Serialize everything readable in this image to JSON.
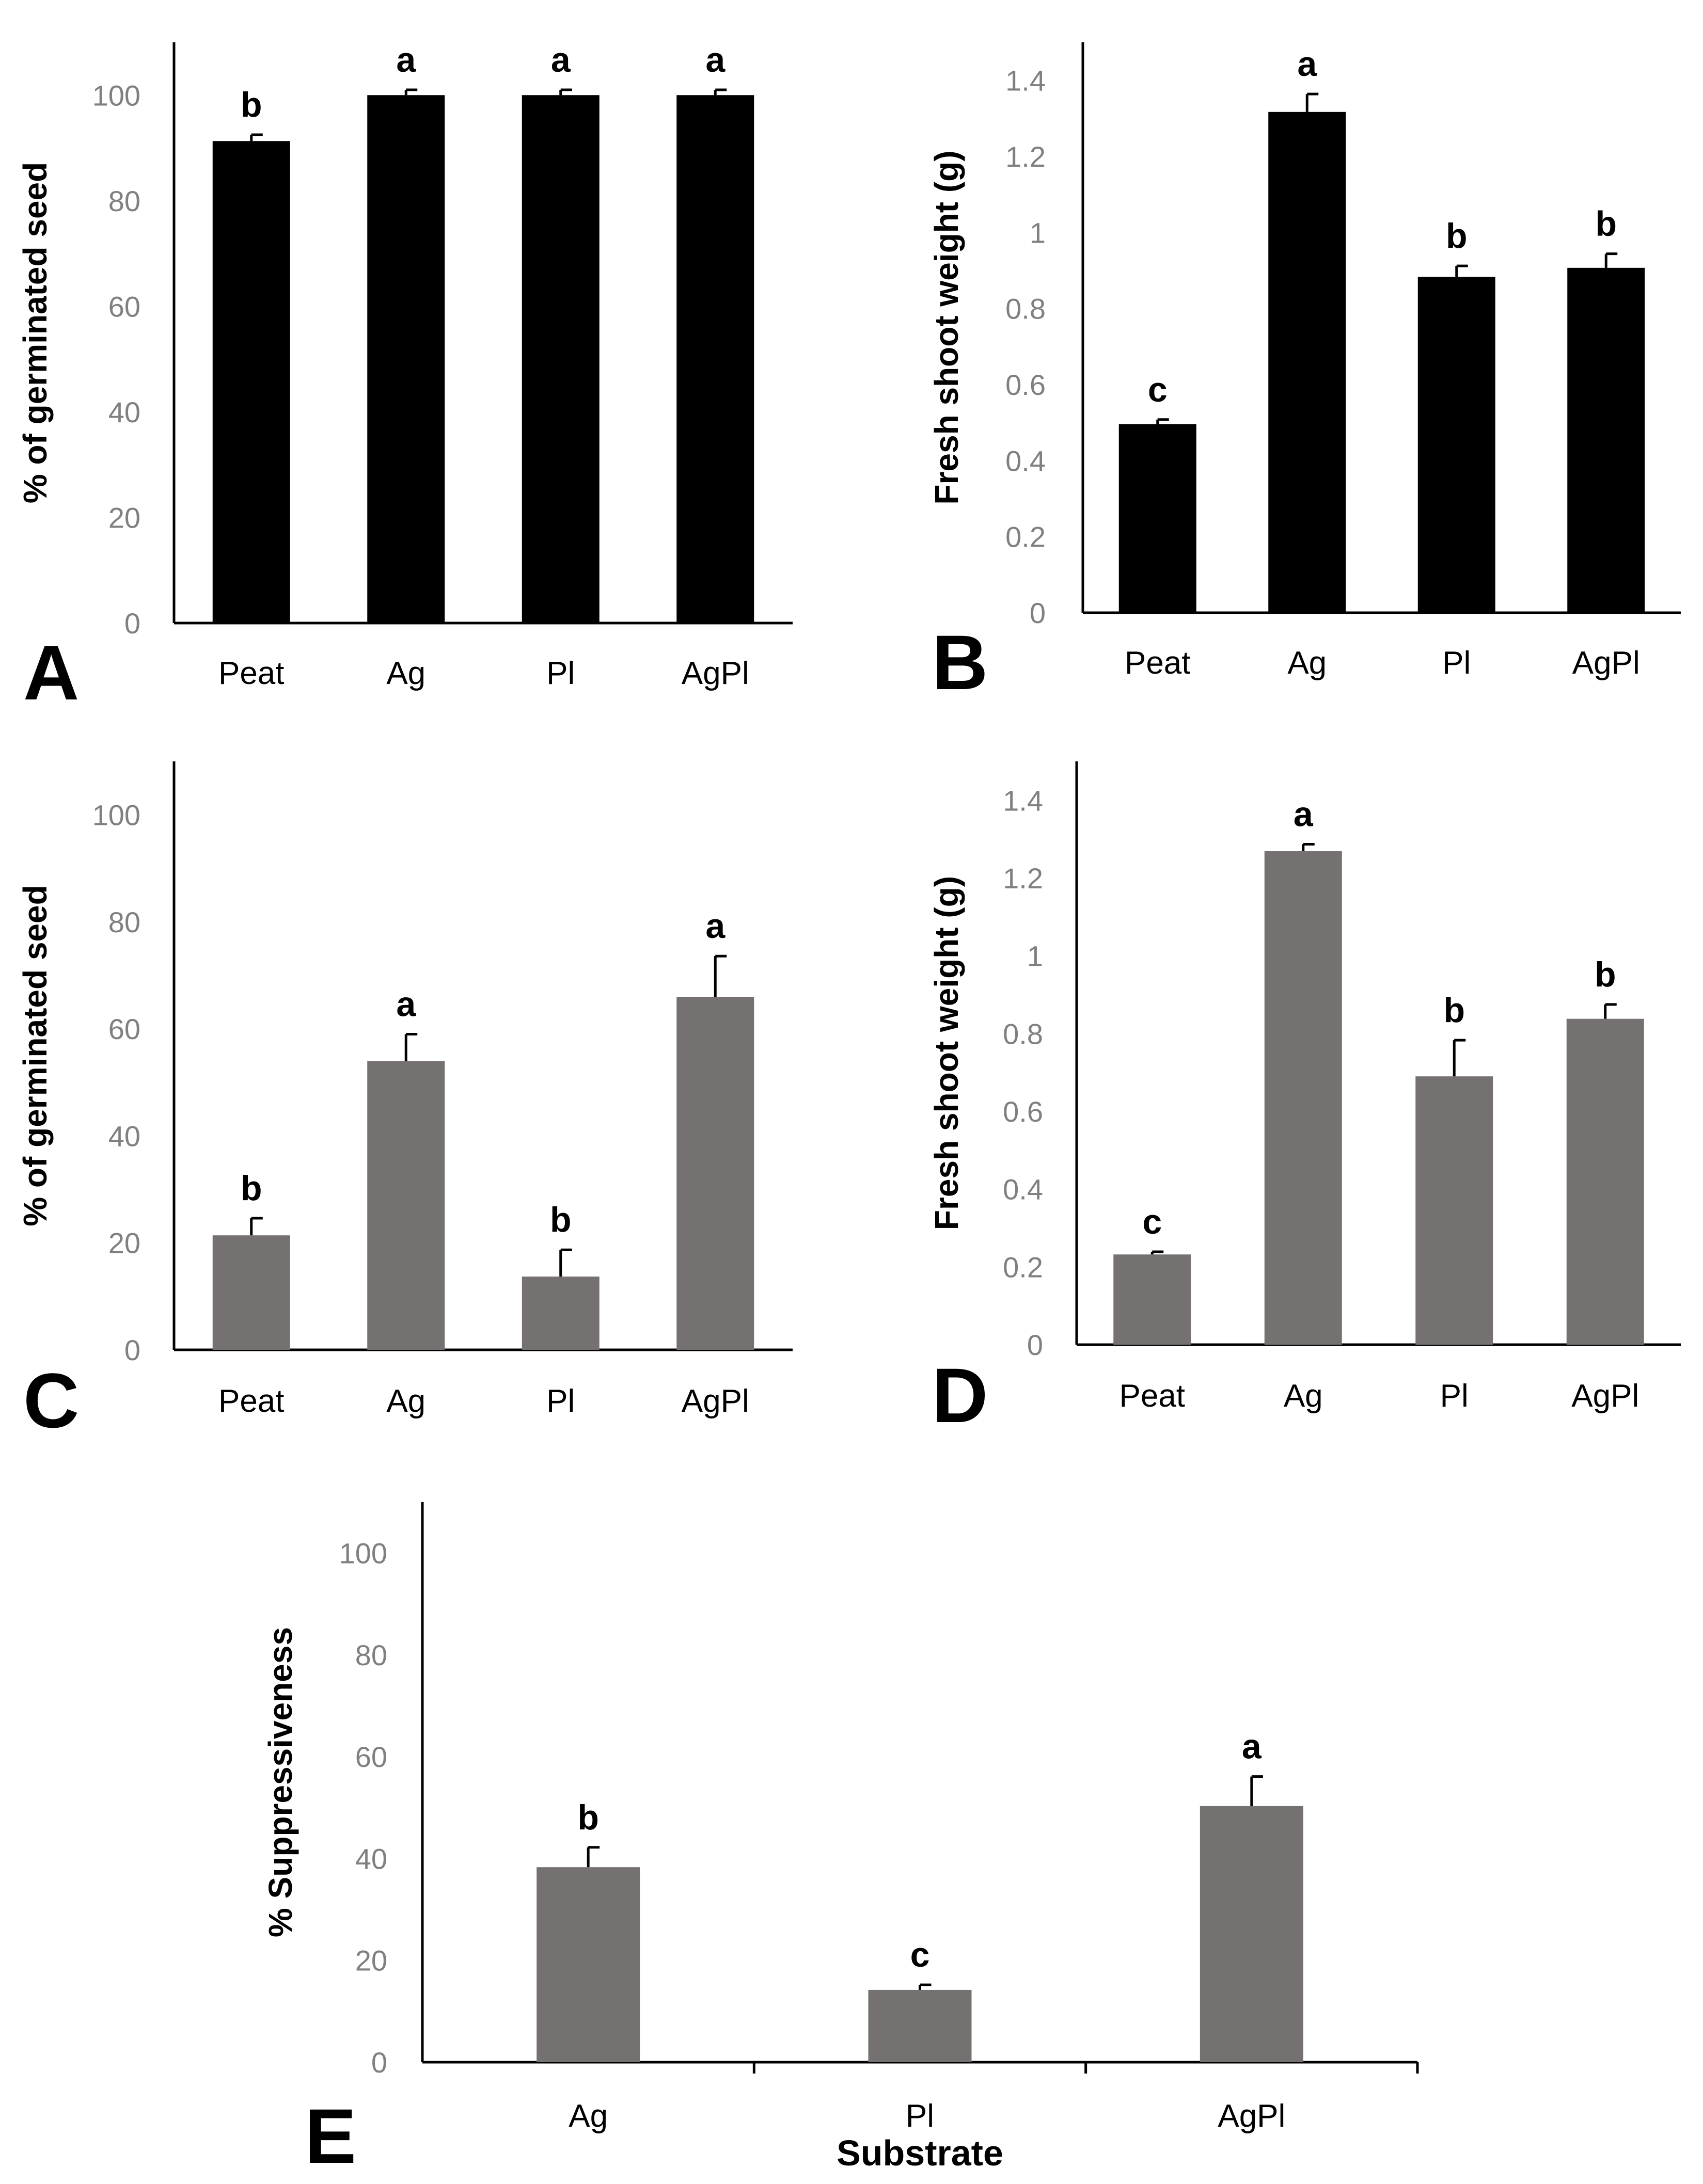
{
  "colors": {
    "black_bars": "#000000",
    "gray_bars": "#767171",
    "tick_text": "#808080"
  },
  "chart_data": [
    {
      "panel": "A",
      "type": "bar",
      "ylabel": "% of germinated seed",
      "xlabel": "",
      "categories": [
        "Peat",
        "Ag",
        "Pl",
        "AgPl"
      ],
      "values": [
        91.3,
        100,
        100,
        100
      ],
      "errors": [
        1.2,
        1.0,
        1.0,
        1.0
      ],
      "significance": [
        "b",
        "a",
        "a",
        "a"
      ],
      "ylim": [
        0,
        110
      ],
      "yticks": [
        0,
        20,
        40,
        60,
        80,
        100
      ],
      "ytick_labels": [
        "0",
        "20",
        "40",
        "60",
        "80",
        "100"
      ],
      "color": "#000000"
    },
    {
      "panel": "B",
      "type": "bar",
      "ylabel": "Fresh shoot weight (g)",
      "xlabel": "",
      "categories": [
        "Peat",
        "Ag",
        "Pl",
        "AgPl"
      ],
      "values": [
        0.496,
        1.317,
        0.883,
        0.907
      ],
      "errors": [
        0.012,
        0.047,
        0.029,
        0.037
      ],
      "significance": [
        "c",
        "a",
        "b",
        "b"
      ],
      "ylim": [
        0,
        1.5
      ],
      "yticks": [
        0,
        0.2,
        0.4,
        0.6,
        0.8,
        1,
        1.2,
        1.4
      ],
      "ytick_labels": [
        "0",
        "0.2",
        "0.4",
        "0.6",
        "0.8",
        "1",
        "1.2",
        "1.4"
      ],
      "color": "#000000"
    },
    {
      "panel": "C",
      "type": "bar",
      "ylabel": "% of germinated seed",
      "xlabel": "",
      "categories": [
        "Peat",
        "Ag",
        "Pl",
        "AgPl"
      ],
      "values": [
        21.4,
        54,
        13.7,
        66
      ],
      "errors": [
        3.2,
        5.0,
        5.0,
        7.6
      ],
      "significance": [
        "b",
        "a",
        "b",
        "a"
      ],
      "ylim": [
        0,
        110
      ],
      "yticks": [
        0,
        20,
        40,
        60,
        80,
        100
      ],
      "ytick_labels": [
        "0",
        "20",
        "40",
        "60",
        "80",
        "100"
      ],
      "color": "#767171"
    },
    {
      "panel": "D",
      "type": "bar",
      "ylabel": "Fresh shoot weight (g)",
      "xlabel": "",
      "categories": [
        "Peat",
        "Ag",
        "Pl",
        "AgPl"
      ],
      "values": [
        0.232,
        1.269,
        0.69,
        0.838
      ],
      "errors": [
        0.007,
        0.018,
        0.093,
        0.037
      ],
      "significance": [
        "c",
        "a",
        "b",
        "b"
      ],
      "ylim": [
        0,
        1.5
      ],
      "yticks": [
        0,
        0.2,
        0.4,
        0.6,
        0.8,
        1,
        1.2,
        1.4
      ],
      "ytick_labels": [
        "0",
        "0.2",
        "0.4",
        "0.6",
        "0.8",
        "1",
        "1.2",
        "1.4"
      ],
      "color": "#767171"
    },
    {
      "panel": "E",
      "type": "bar",
      "ylabel": "% Suppressiveness",
      "xlabel": "Substrate",
      "categories": [
        "Ag",
        "Pl",
        "AgPl"
      ],
      "values": [
        38.3,
        14.2,
        50.3
      ],
      "errors": [
        3.9,
        1.0,
        5.8
      ],
      "significance": [
        "b",
        "c",
        "a"
      ],
      "ylim": [
        0,
        110
      ],
      "yticks": [
        0,
        20,
        40,
        60,
        80,
        100
      ],
      "ytick_labels": [
        "0",
        "20",
        "40",
        "60",
        "80",
        "100"
      ],
      "color": "#767171"
    }
  ]
}
